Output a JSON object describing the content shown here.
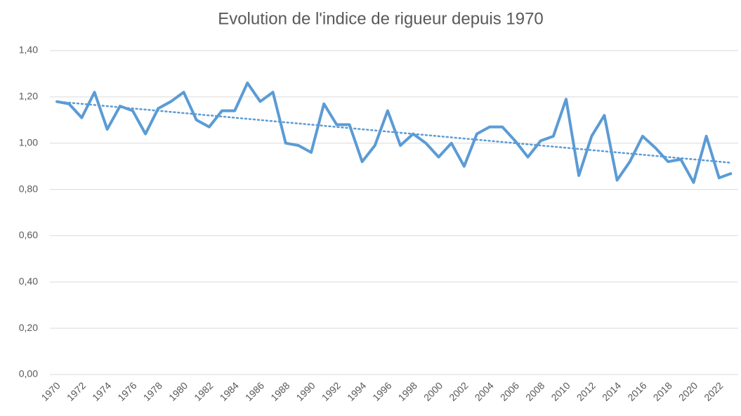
{
  "chart_data": {
    "type": "line",
    "title": "Evolution de l'indice de rigueur depuis 1970",
    "categories": [
      "1970",
      null,
      "1972",
      null,
      "1974",
      null,
      "1976",
      null,
      "1978",
      null,
      "1980",
      null,
      "1982",
      null,
      "1984",
      null,
      "1986",
      null,
      "1988",
      null,
      "1990",
      null,
      "1992",
      null,
      "1994",
      null,
      "1996",
      null,
      "1998",
      null,
      "2000",
      null,
      "2002",
      null,
      "2004",
      null,
      "2006",
      null,
      "2008",
      null,
      "2010",
      null,
      "2012",
      null,
      "2014",
      null,
      "2016",
      null,
      "2018",
      null,
      "2020",
      null,
      "2022",
      null
    ],
    "series": [
      {
        "color": "#5b9bd5",
        "values": [
          1.18,
          1.17,
          1.11,
          1.22,
          1.06,
          1.16,
          1.14,
          1.04,
          1.15,
          1.18,
          1.22,
          1.1,
          1.07,
          1.14,
          1.14,
          1.26,
          1.18,
          1.22,
          1.0,
          0.99,
          0.96,
          1.17,
          1.08,
          1.08,
          0.92,
          0.99,
          1.14,
          0.99,
          1.04,
          1.0,
          0.94,
          1.0,
          0.9,
          1.04,
          1.07,
          1.07,
          1.01,
          0.94,
          1.01,
          1.03,
          1.19,
          0.86,
          1.03,
          1.12,
          0.84,
          0.92,
          1.03,
          0.98,
          0.92,
          0.93,
          0.83,
          1.03,
          0.85,
          0.87
        ]
      }
    ],
    "trendline": {
      "color": "#5b9bd5",
      "style": "dotted",
      "values": [
        1.18,
        0.915
      ]
    },
    "ylim": [
      0,
      1.4
    ],
    "yticks": [
      {
        "value": 0,
        "label": "0,00"
      },
      {
        "value": 0.2,
        "label": "0,20"
      },
      {
        "value": 0.4,
        "label": "0,40"
      },
      {
        "value": 0.6,
        "label": "0,60"
      },
      {
        "value": 0.8,
        "label": "0,80"
      },
      {
        "value": 1.0,
        "label": "1,00"
      },
      {
        "value": 1.2,
        "label": "1,20"
      },
      {
        "value": 1.4,
        "label": "1,40"
      }
    ],
    "grid": true
  }
}
